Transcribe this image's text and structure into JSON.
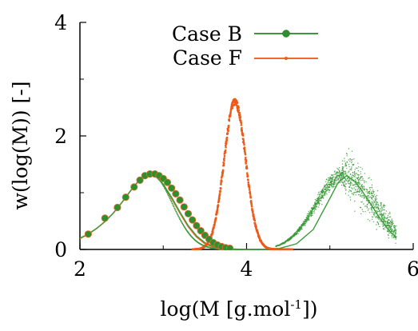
{
  "chart_data": {
    "type": "scatter",
    "xlabel_main": "log(M [g.mol",
    "xlabel_sup": "-1",
    "xlabel_tail": "])",
    "ylabel": "w(log(M)) [-]",
    "xlim": [
      2,
      6
    ],
    "ylim": [
      0,
      4
    ],
    "x_ticks": [
      {
        "value": 2,
        "label": "2"
      },
      {
        "value": 4,
        "label": "4"
      },
      {
        "value": 6,
        "label": "6"
      }
    ],
    "y_ticks": [
      {
        "value": 0,
        "label": "0"
      },
      {
        "value": 2,
        "label": "2"
      },
      {
        "value": 4,
        "label": "4"
      }
    ],
    "minor_x_ticks": [
      3,
      5
    ],
    "minor_y_ticks": [
      1,
      3
    ],
    "legend_position": "top-right",
    "series": [
      {
        "name": "Case B",
        "color": "#3a9a3a",
        "marker_color": "#2f8f2f",
        "line": [
          [
            2.0,
            0.2
          ],
          [
            2.1,
            0.27
          ],
          [
            2.2,
            0.37
          ],
          [
            2.3,
            0.49
          ],
          [
            2.4,
            0.64
          ],
          [
            2.5,
            0.82
          ],
          [
            2.6,
            1.02
          ],
          [
            2.7,
            1.2
          ],
          [
            2.75,
            1.29
          ],
          [
            2.8,
            1.33
          ],
          [
            2.85,
            1.33
          ],
          [
            2.9,
            1.3
          ],
          [
            3.0,
            1.15
          ],
          [
            3.1,
            0.92
          ],
          [
            3.2,
            0.66
          ],
          [
            3.3,
            0.42
          ],
          [
            3.4,
            0.24
          ],
          [
            3.5,
            0.12
          ],
          [
            3.6,
            0.05
          ],
          [
            3.7,
            0.02
          ],
          [
            3.8,
            0.01
          ],
          [
            4.0,
            0.0
          ],
          [
            4.2,
            0.0
          ],
          [
            4.4,
            0.02
          ],
          [
            4.6,
            0.1
          ],
          [
            4.8,
            0.35
          ],
          [
            5.0,
            0.9
          ],
          [
            5.1,
            1.18
          ],
          [
            5.2,
            1.3
          ],
          [
            5.3,
            1.2
          ],
          [
            5.4,
            1.0
          ],
          [
            5.5,
            0.78
          ],
          [
            5.6,
            0.55
          ],
          [
            5.7,
            0.35
          ],
          [
            5.8,
            0.2
          ]
        ],
        "markers": [
          [
            2.1,
            0.27
          ],
          [
            2.3,
            0.55
          ],
          [
            2.45,
            0.74
          ],
          [
            2.55,
            0.92
          ],
          [
            2.65,
            1.1
          ],
          [
            2.72,
            1.22
          ],
          [
            2.78,
            1.3
          ],
          [
            2.84,
            1.33
          ],
          [
            2.9,
            1.33
          ],
          [
            2.95,
            1.3
          ],
          [
            3.0,
            1.25
          ],
          [
            3.05,
            1.18
          ],
          [
            3.1,
            1.08
          ],
          [
            3.15,
            0.98
          ],
          [
            3.2,
            0.87
          ],
          [
            3.25,
            0.75
          ],
          [
            3.3,
            0.63
          ],
          [
            3.35,
            0.52
          ],
          [
            3.4,
            0.42
          ],
          [
            3.45,
            0.33
          ],
          [
            3.5,
            0.25
          ],
          [
            3.55,
            0.18
          ],
          [
            3.6,
            0.12
          ],
          [
            3.65,
            0.08
          ],
          [
            3.7,
            0.05
          ],
          [
            3.75,
            0.03
          ],
          [
            3.8,
            0.02
          ]
        ],
        "scatter_cloud": {
          "center": 5.15,
          "peak": 1.3,
          "x_range": [
            4.35,
            5.8
          ]
        }
      },
      {
        "name": "Case F",
        "color": "#ee6a2a",
        "marker_color": "#ee5a1a",
        "line": [
          [
            2.0,
            0.19
          ],
          [
            2.1,
            0.27
          ],
          [
            2.2,
            0.37
          ],
          [
            2.3,
            0.49
          ],
          [
            2.4,
            0.64
          ],
          [
            2.5,
            0.82
          ],
          [
            2.6,
            1.02
          ],
          [
            2.7,
            1.2
          ],
          [
            2.8,
            1.32
          ],
          [
            2.9,
            1.31
          ],
          [
            3.0,
            1.15
          ],
          [
            3.1,
            0.9
          ],
          [
            3.2,
            0.64
          ],
          [
            3.3,
            0.4
          ],
          [
            3.4,
            0.22
          ],
          [
            3.5,
            0.1
          ],
          [
            3.6,
            0.04
          ],
          [
            3.7,
            0.01
          ],
          [
            3.8,
            0.0
          ],
          [
            4.0,
            0.0
          ]
        ],
        "markers_peak": {
          "center": 3.86,
          "peak": 2.6,
          "x_range": [
            3.35,
            4.55
          ]
        }
      }
    ]
  }
}
